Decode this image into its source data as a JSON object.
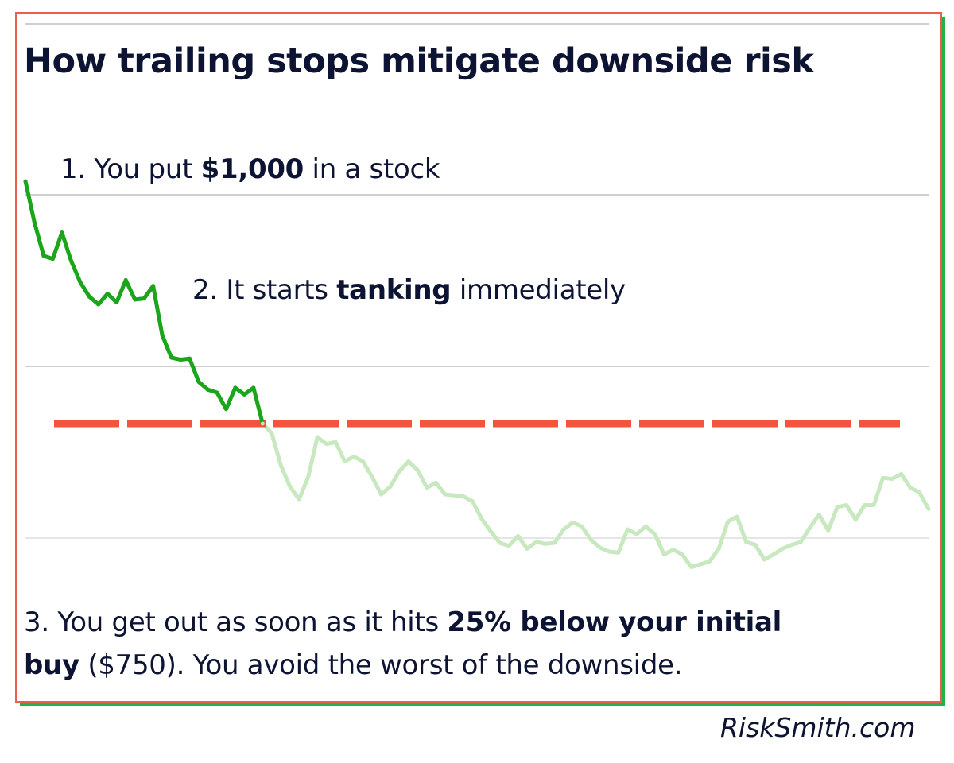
{
  "title": "How trailing stops mitigate downside risk",
  "steps": {
    "s1": {
      "pre": "1. You put ",
      "bold": "$1,000",
      "post": " in a stock"
    },
    "s2": {
      "pre": "2. It starts ",
      "bold": "tanking",
      "post": " immediately"
    },
    "s3": {
      "pre": "3. You get out as soon as it hits ",
      "bold1": "25% below your initial",
      "bold2": "buy",
      "post": " ($750). You avoid the worst of the downside."
    }
  },
  "brand": "RiskSmith.com",
  "colors": {
    "price_before_stop": "#1aa51a",
    "price_after_stop": "#c8e9c0",
    "stop_line": "#f4533c",
    "frame_border": "#e8604a",
    "frame_shadow": "#1fb34a",
    "text": "#0d1333",
    "grid": "#cccccc"
  },
  "chart_data": {
    "type": "line",
    "title": "How trailing stops mitigate downside risk",
    "xlabel": "",
    "ylabel": "",
    "grid": true,
    "initial_buy": 1000,
    "stop_level": 750,
    "series": [
      {
        "values": [
          1000,
          957,
          923,
          920,
          947,
          918,
          896,
          881,
          873,
          884,
          875,
          898,
          878,
          879,
          892,
          841,
          818,
          816,
          817,
          793,
          785,
          782,
          765,
          787,
          780,
          787,
          750
        ]
      },
      {
        "values": [
          750,
          740,
          707,
          685,
          672,
          695,
          736,
          729,
          731,
          711,
          716,
          711,
          695,
          677,
          685,
          701,
          711,
          702,
          684,
          689,
          677,
          676,
          675,
          670,
          652,
          639,
          627,
          624,
          634,
          621,
          628,
          626,
          627,
          641,
          648,
          644,
          630,
          622,
          618,
          617,
          641,
          636,
          644,
          636,
          615,
          620,
          615,
          602,
          605,
          608,
          621,
          649,
          654,
          628,
          625,
          610,
          615,
          621,
          625,
          628,
          643,
          656,
          640,
          664,
          666,
          651,
          666,
          666,
          694,
          693,
          698,
          684,
          679,
          662
        ]
      }
    ]
  }
}
